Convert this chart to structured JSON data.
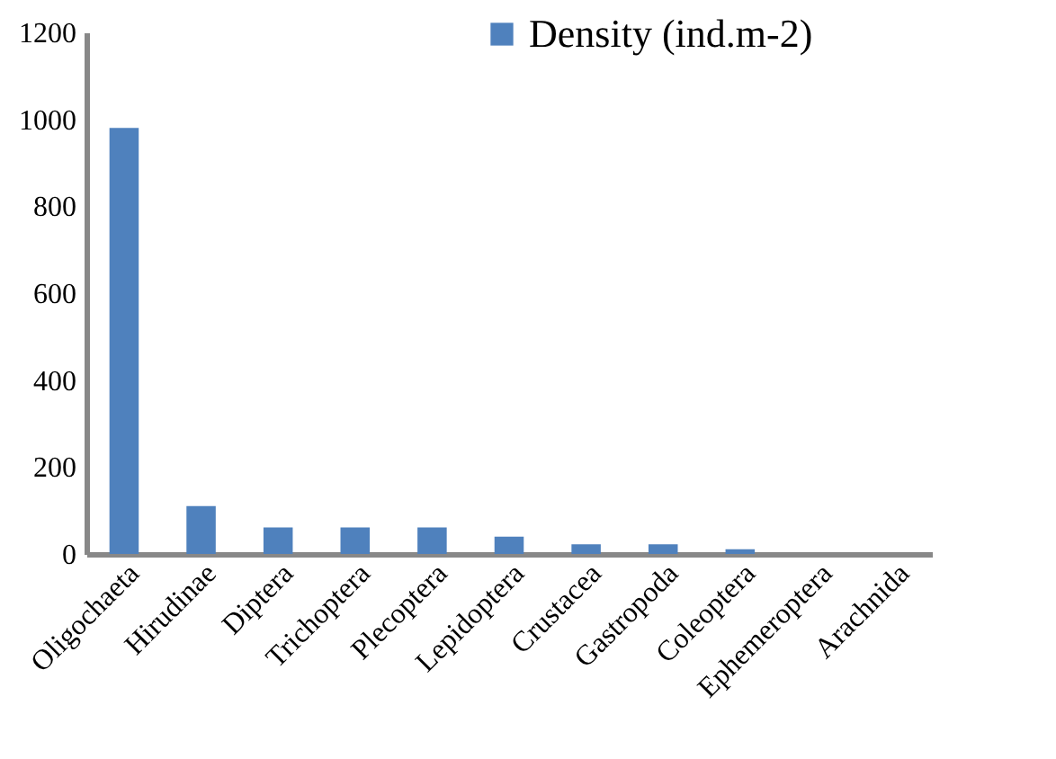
{
  "chart_data": {
    "type": "bar",
    "categories": [
      "Oligochaeta",
      "Hirudinae",
      "Diptera",
      "Trichoptera",
      "Plecoptera",
      "Lepidoptera",
      "Crustacea",
      "Gastropoda",
      "Coleoptera",
      "Ephemeroptera",
      "Arachnida"
    ],
    "series": [
      {
        "name": "Density (ind.m-2)",
        "color": "#4f81bd",
        "values": [
          980,
          110,
          61,
          61,
          61,
          40,
          22,
          22,
          11,
          null,
          null
        ]
      }
    ],
    "ylim": [
      0,
      1200
    ],
    "yticks": [
      0,
      200,
      400,
      600,
      800,
      1000,
      1200
    ],
    "grid": false,
    "legend": "top"
  }
}
